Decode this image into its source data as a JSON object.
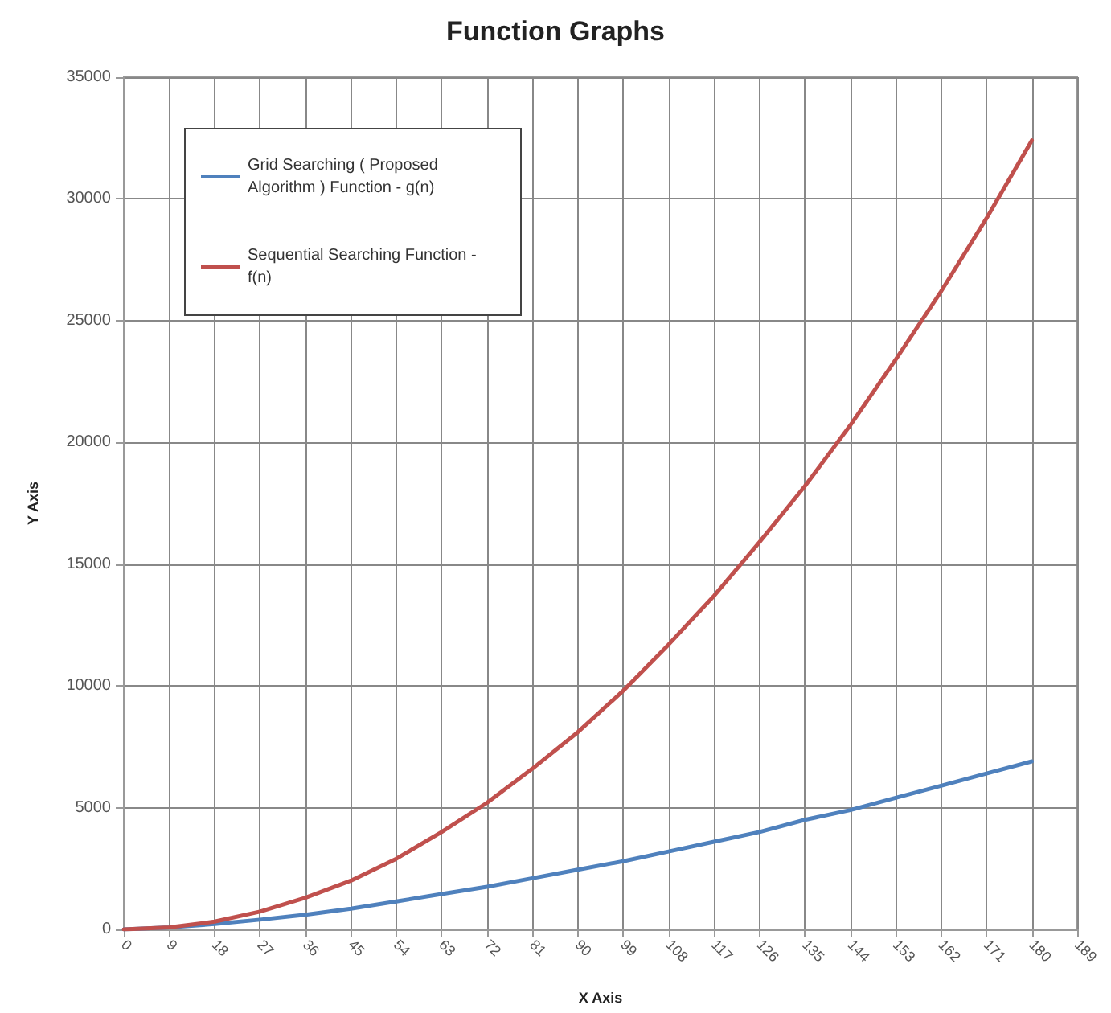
{
  "chart_data": {
    "type": "line",
    "title": "Function Graphs",
    "xlabel": "X Axis",
    "ylabel": "Y Axis",
    "x": [
      0,
      9,
      18,
      27,
      36,
      45,
      54,
      63,
      72,
      81,
      90,
      99,
      108,
      117,
      126,
      135,
      144,
      153,
      162,
      171,
      180
    ],
    "series": [
      {
        "name": "Grid Searching ( Proposed Algorithm ) Function - g(n)",
        "color": "#4f81bd",
        "values": [
          0,
          80,
          220,
          400,
          600,
          850,
          1150,
          1450,
          1750,
          2100,
          2450,
          2800,
          3200,
          3600,
          4000,
          4500,
          4900,
          5400,
          5900,
          6400,
          6900
        ]
      },
      {
        "name": "Sequential Searching Function - f(n)",
        "color": "#c0504d",
        "values": [
          0,
          80,
          320,
          730,
          1300,
          2000,
          2900,
          4000,
          5200,
          6600,
          8100,
          9800,
          11700,
          13700,
          15900,
          18200,
          20700,
          23400,
          26200,
          29200,
          32400
        ]
      }
    ],
    "xlim": [
      0,
      189
    ],
    "xticks": [
      0,
      9,
      18,
      27,
      36,
      45,
      54,
      63,
      72,
      81,
      90,
      99,
      108,
      117,
      126,
      135,
      144,
      153,
      162,
      171,
      180,
      189
    ],
    "ylim": [
      0,
      35000
    ],
    "yticks": [
      0,
      5000,
      10000,
      15000,
      20000,
      25000,
      30000,
      35000
    ],
    "grid": true,
    "legend": "top left",
    "marker": "none",
    "line_style": "solid"
  }
}
